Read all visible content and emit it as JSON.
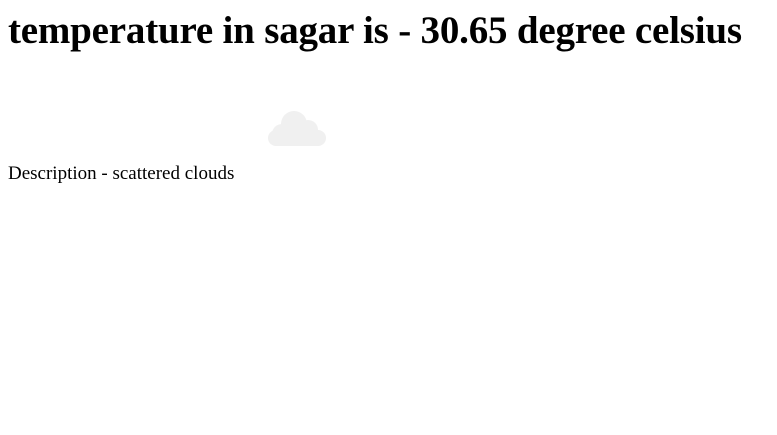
{
  "heading": {
    "text": "temperature in sagar is - 30.65 degree celsius"
  },
  "weather": {
    "icon": "cloud-icon",
    "icon_color": "#f0f0f0",
    "description_text": "Description - scattered clouds"
  }
}
